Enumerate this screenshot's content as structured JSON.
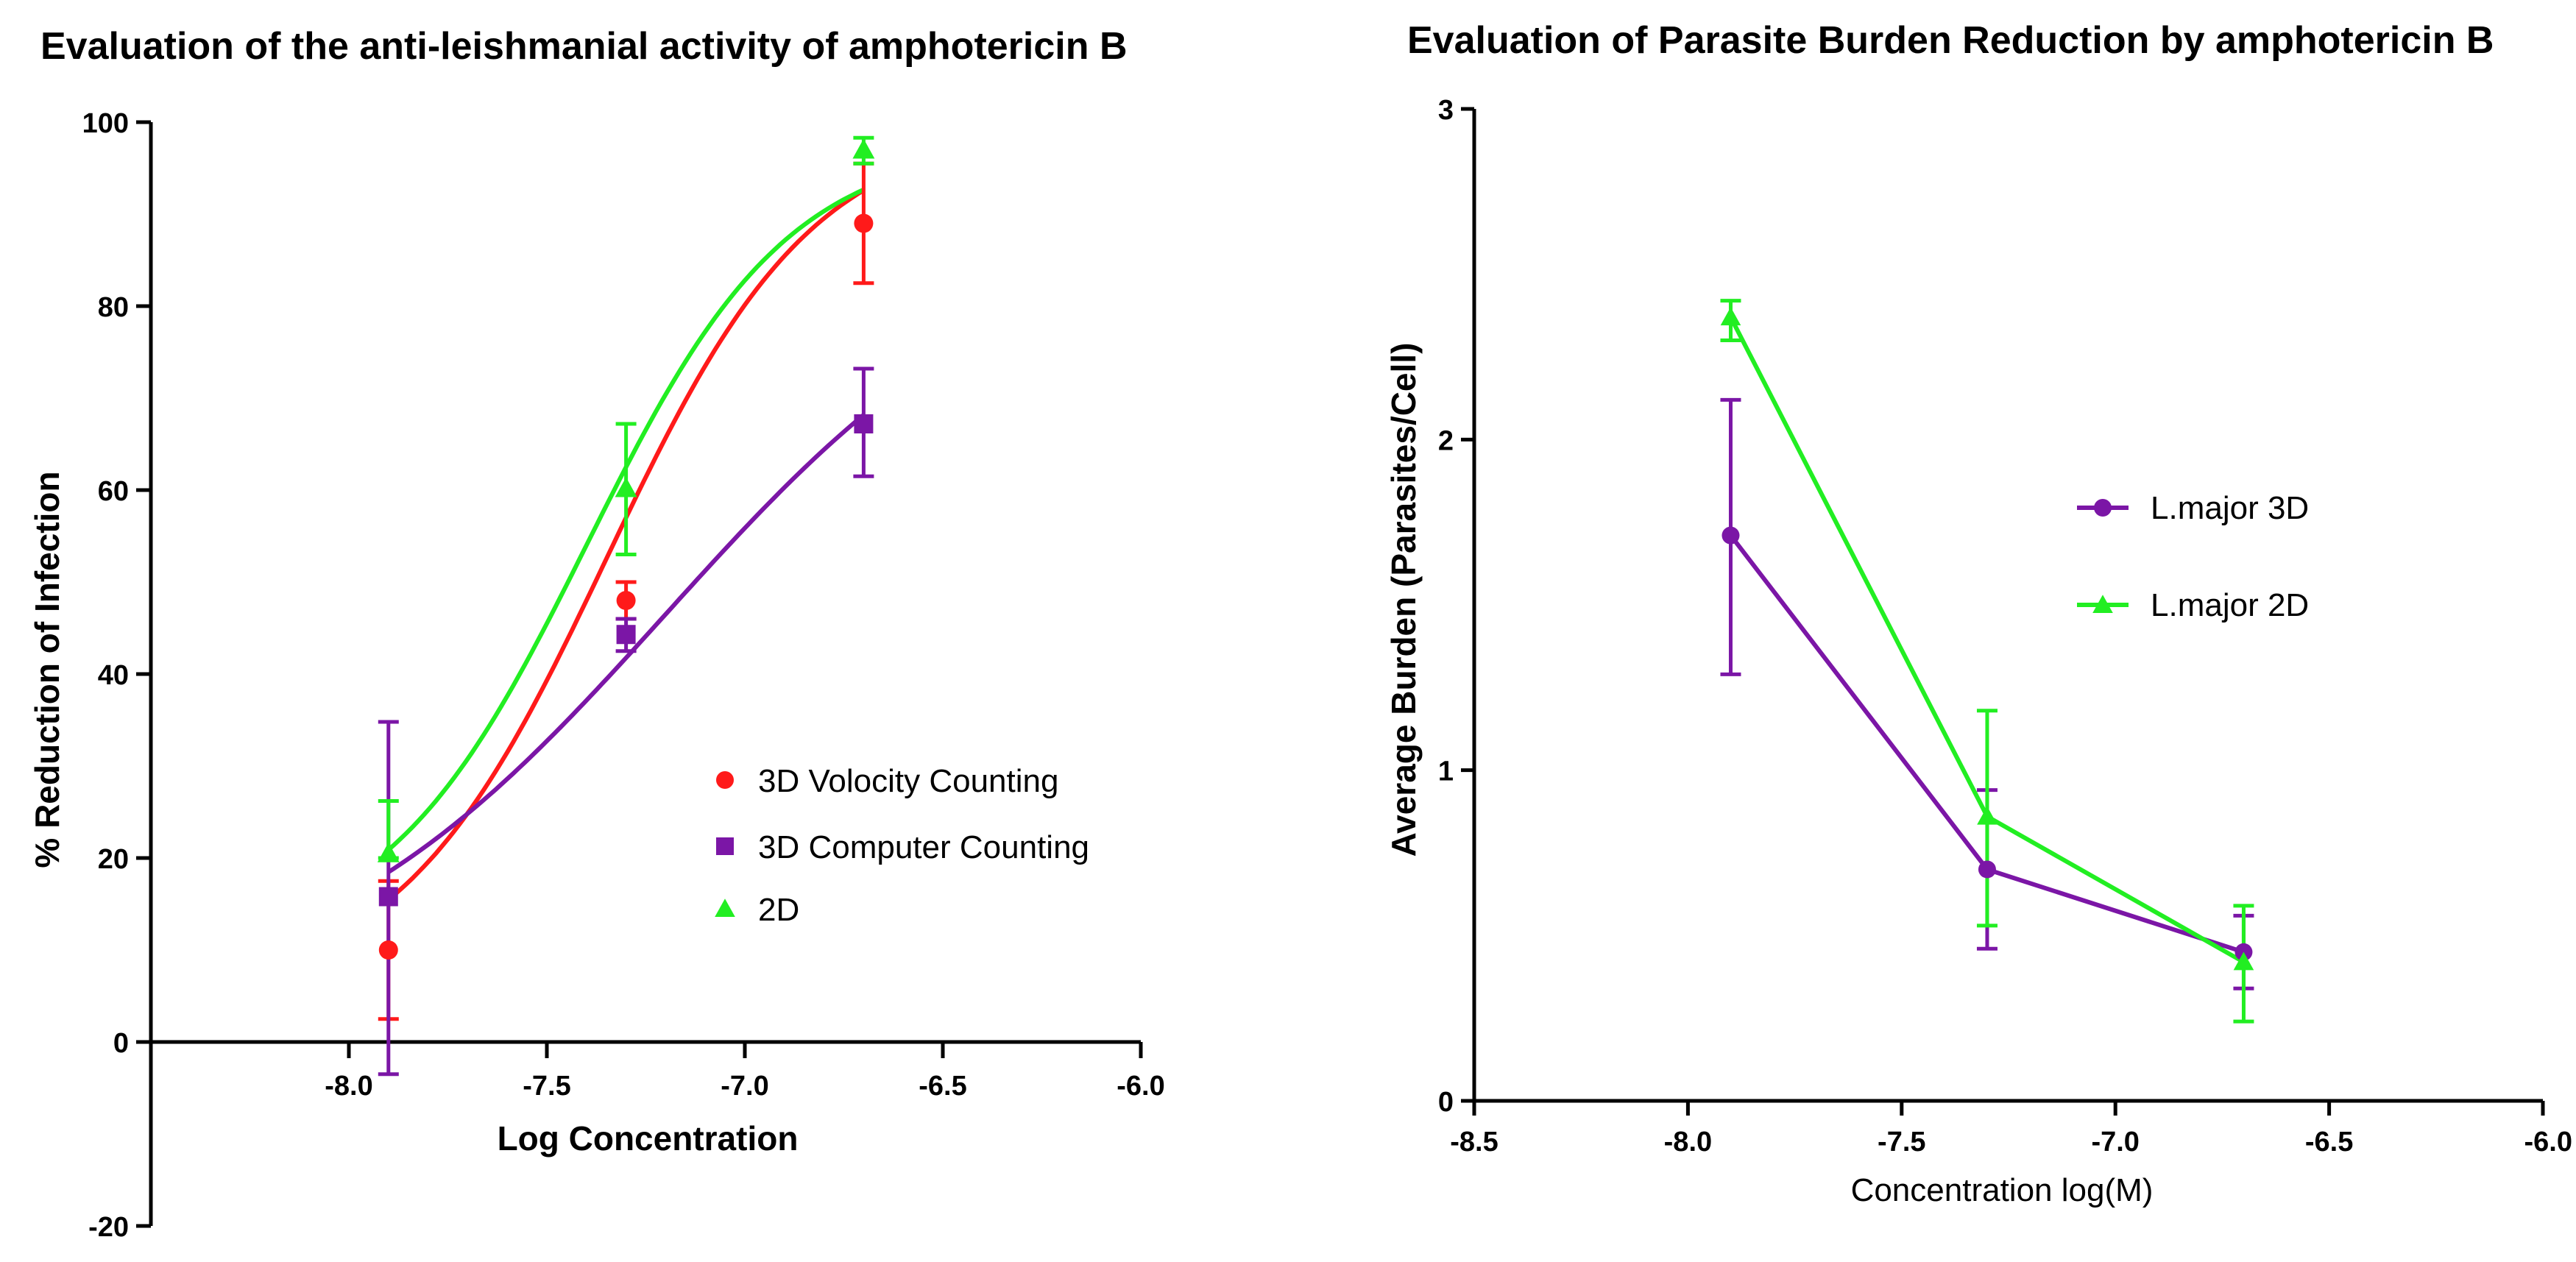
{
  "chart_data": [
    {
      "type": "line",
      "title": "Evaluation of the anti-leishmanial activity of amphotericin B",
      "xlabel": "Log Concentration",
      "ylabel": "% Reduction of Infection",
      "xlim": [
        -8.5,
        -6.0
      ],
      "ylim": [
        -20,
        100
      ],
      "xticks": [
        -8.0,
        -7.5,
        -7.0,
        -6.5,
        -6.0
      ],
      "xtick_labels": [
        "-8.0",
        "-7.5",
        "-7.0",
        "-6.5",
        "-6.0"
      ],
      "yticks": [
        -20,
        0,
        20,
        40,
        60,
        80,
        100
      ],
      "ytick_labels": [
        "-20",
        "0",
        "20",
        "40",
        "60",
        "80",
        "100"
      ],
      "legend_position": "center-right",
      "series": [
        {
          "name": "3D Volocity Counting",
          "color": "#ff1a1a",
          "marker": "circle",
          "x": [
            -7.9,
            -7.3,
            -6.7
          ],
          "values": [
            10,
            48,
            89
          ],
          "err_low": [
            2.5,
            46,
            82.5
          ],
          "err_high": [
            17.5,
            50,
            95.5
          ],
          "fit": "sigmoid",
          "fit_params": {
            "bottom": 5,
            "top": 100,
            "x50": -7.35,
            "slope": 1.65
          }
        },
        {
          "name": "3D Computer Counting",
          "color": "#7b16a6",
          "marker": "square",
          "x": [
            -7.9,
            -7.3,
            -6.7
          ],
          "values": [
            15.8,
            44.3,
            67.2
          ],
          "err_low": [
            -3.5,
            42.5,
            61.5
          ],
          "err_high": [
            34.8,
            46,
            73.2
          ],
          "fit": "sigmoid",
          "fit_params": {
            "bottom": 3,
            "top": 90,
            "x50": -7.2,
            "slope": 0.95
          }
        },
        {
          "name": "2D",
          "color": "#22ee22",
          "marker": "triangle",
          "x": [
            -7.9,
            -7.3,
            -6.7
          ],
          "values": [
            20.5,
            60.2,
            97
          ],
          "err_low": [
            20,
            53,
            95.5
          ],
          "err_high": [
            26.2,
            67.2,
            98.3
          ],
          "fit": "sigmoid",
          "fit_params": {
            "bottom": 10,
            "top": 98,
            "x50": -7.4,
            "slope": 1.7
          }
        }
      ]
    },
    {
      "type": "line",
      "title": "Evaluation of Parasite Burden Reduction by amphotericin B",
      "xlabel": "Concentration log(M)",
      "ylabel": "Average Burden (Parasites/Cell)",
      "xlim": [
        -8.5,
        -6.0
      ],
      "ylim": [
        0,
        3
      ],
      "xticks": [
        -8.5,
        -8.0,
        -7.5,
        -7.0,
        -6.5,
        -6.0
      ],
      "xtick_labels": [
        "-8.5",
        "-8.0",
        "-7.5",
        "-7.0",
        "-6.5",
        "-6.0"
      ],
      "yticks": [
        0,
        1,
        2,
        3
      ],
      "ytick_labels": [
        "0",
        "1",
        "2",
        "3"
      ],
      "legend_position": "center-right",
      "series": [
        {
          "name": "L.major 3D",
          "color": "#7b16a6",
          "marker": "circle",
          "x": [
            -7.9,
            -7.3,
            -6.7
          ],
          "values": [
            1.71,
            0.7,
            0.45
          ],
          "err_low": [
            1.29,
            0.46,
            0.34
          ],
          "err_high": [
            2.12,
            0.94,
            0.56
          ]
        },
        {
          "name": "L.major 2D",
          "color": "#22ee22",
          "marker": "triangle",
          "x": [
            -7.9,
            -7.3,
            -6.7
          ],
          "values": [
            2.37,
            0.86,
            0.42
          ],
          "err_low": [
            2.3,
            0.53,
            0.24
          ],
          "err_high": [
            2.42,
            1.18,
            0.59
          ]
        }
      ]
    }
  ]
}
